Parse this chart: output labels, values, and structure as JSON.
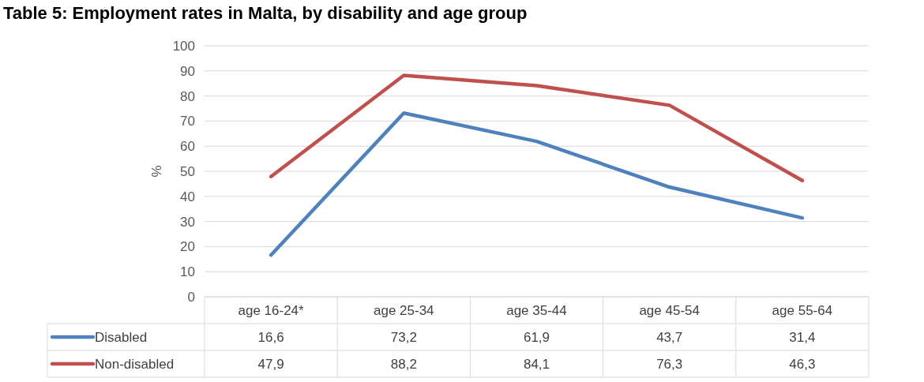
{
  "chart_data": {
    "type": "line",
    "title": "Table 5: Employment rates in Malta, by disability and age group",
    "ylabel": "%",
    "categories": [
      "age 16-24*",
      "age 25-34",
      "age 35-44",
      "age 45-54",
      "age 55-64"
    ],
    "series": [
      {
        "name": "Disabled",
        "color": "#4f81bd",
        "values": [
          16.6,
          73.2,
          61.9,
          43.7,
          31.4
        ],
        "value_labels": [
          "16,6",
          "73,2",
          "61,9",
          "43,7",
          "31,4"
        ]
      },
      {
        "name": "Non-disabled",
        "color": "#c0504d",
        "values": [
          47.9,
          88.2,
          84.1,
          76.3,
          46.3
        ],
        "value_labels": [
          "47,9",
          "88,2",
          "84,1",
          "76,3",
          "46,3"
        ]
      }
    ],
    "ylim": [
      0,
      100
    ],
    "yticks": [
      0,
      10,
      20,
      30,
      40,
      50,
      60,
      70,
      80,
      90,
      100
    ],
    "grid": "y",
    "legend": "bottom",
    "marker": "none",
    "line_style": "solid"
  }
}
